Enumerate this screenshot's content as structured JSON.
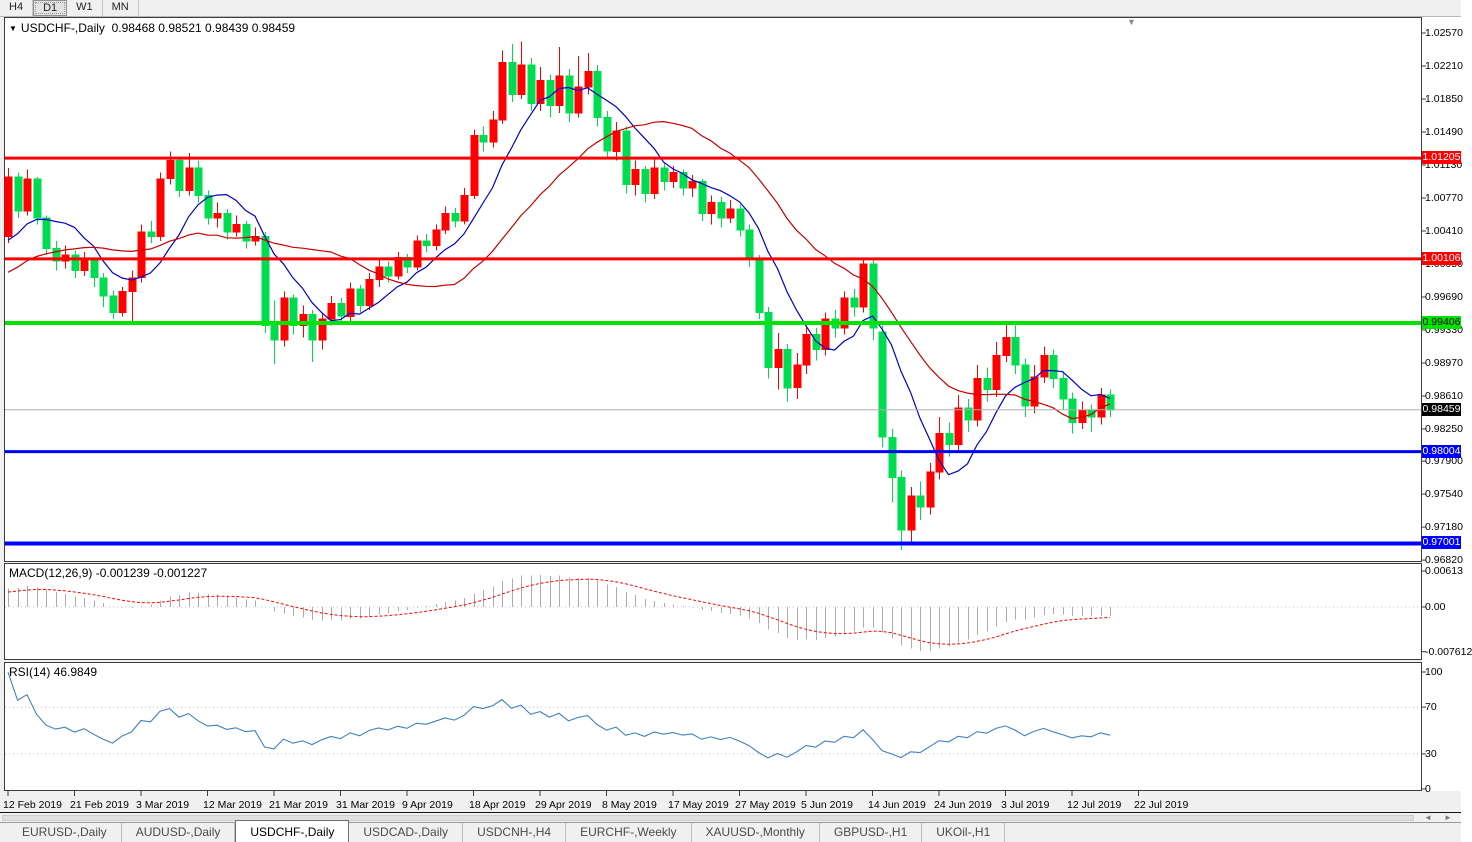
{
  "toolbar": {
    "timeframes": [
      "H4",
      "D1",
      "W1",
      "MN"
    ],
    "active": "D1"
  },
  "chart": {
    "title_symbol": "USDCHF-,Daily",
    "ohlc_text": "0.98468 0.98521 0.98439 0.98459",
    "open": "0.98468",
    "high": "0.98521",
    "low": "0.98439",
    "close": "0.98459"
  },
  "icons": {
    "dropdown": "▼",
    "end_marker": "▼",
    "scroll_left": "◄",
    "scroll_right": "►"
  },
  "price_axis": {
    "labels": [
      "1.02570",
      "1.02210",
      "1.01850",
      "1.01490",
      "1.01130",
      "1.00770",
      "1.00410",
      "1.00050",
      "0.99690",
      "0.99330",
      "0.98970",
      "0.98610",
      "0.98250",
      "0.97900",
      "0.97540",
      "0.97180",
      "0.96820"
    ]
  },
  "levels": [
    {
      "text": "1.01205",
      "value": 1.01205,
      "color": "#FF0000",
      "fg": "#FFFFFF",
      "thickness": 3,
      "role": "resistance"
    },
    {
      "text": "1.00106",
      "value": 1.00106,
      "color": "#FF0000",
      "fg": "#FFFFFF",
      "thickness": 3,
      "role": "resistance"
    },
    {
      "text": "0.99406",
      "value": 0.99406,
      "color": "#00E400",
      "fg": "#000000",
      "thickness": 4,
      "role": "pivot"
    },
    {
      "text": "0.98004",
      "value": 0.98004,
      "color": "#0000FF",
      "fg": "#FFFFFF",
      "thickness": 3,
      "role": "support"
    },
    {
      "text": "0.97001",
      "value": 0.97001,
      "color": "#0000FF",
      "fg": "#FFFFFF",
      "thickness": 4,
      "role": "support"
    }
  ],
  "current_price": {
    "text": "0.98459",
    "value": 0.98459,
    "color": "#000000",
    "fg": "#FFFFFF"
  },
  "macd": {
    "label": "MACD(12,26,9)",
    "values_text": "-0.001239 -0.001227",
    "axis": [
      {
        "text": "0.00613",
        "value": 0.00613
      },
      {
        "text": "0.00",
        "value": 0
      },
      {
        "text": "-0.007612",
        "value": -0.00761
      }
    ]
  },
  "rsi": {
    "label": "RSI(14)",
    "value_text": "46.9849",
    "axis": [
      {
        "text": "100",
        "value": 100
      },
      {
        "text": "70",
        "value": 70
      },
      {
        "text": "30",
        "value": 30
      },
      {
        "text": "0",
        "value": 0
      }
    ],
    "level_lines": [
      70,
      30
    ]
  },
  "tabs": [
    {
      "label": "EURUSD-,Daily",
      "active": false
    },
    {
      "label": "AUDUSD-,Daily",
      "active": false
    },
    {
      "label": "USDCHF-,Daily",
      "active": true
    },
    {
      "label": "USDCAD-,Daily",
      "active": false
    },
    {
      "label": "USDCNH-,H4",
      "active": false
    },
    {
      "label": "EURCHF-,Weekly",
      "active": false
    },
    {
      "label": "XAUUSD-,Monthly",
      "active": false
    },
    {
      "label": "GBPUSD-,H1",
      "active": false
    },
    {
      "label": "UKOil-,H1",
      "active": false
    }
  ],
  "chart_data": {
    "type": "candlestick",
    "symbol": "USDCHF",
    "timeframe": "Daily",
    "title": "USDCHF-,Daily",
    "up_color": "#FF0000",
    "down_color": "#00DC50",
    "x_labels": [
      "12 Feb 2019",
      "21 Feb 2019",
      "3 Mar 2019",
      "12 Mar 2019",
      "21 Mar 2019",
      "31 Mar 2019",
      "9 Apr 2019",
      "18 Apr 2019",
      "29 Apr 2019",
      "8 May 2019",
      "17 May 2019",
      "27 May 2019",
      "5 Jun 2019",
      "14 Jun 2019",
      "24 Jun 2019",
      "3 Jul 2019",
      "12 Jul 2019",
      "22 Jul 2019"
    ],
    "candles_per_label": 7,
    "y_range": [
      0.9682,
      1.0257
    ],
    "horizontal_lines": [
      1.01205,
      1.00106,
      0.99406,
      0.98004,
      0.97001
    ],
    "last_close": 0.98459,
    "ohlc_current": {
      "open": 0.98468,
      "high": 0.98521,
      "low": 0.98439,
      "close": 0.98459
    },
    "overlays": [
      {
        "name": "ma-fast",
        "period": 8,
        "color": "#0000C8"
      },
      {
        "name": "ma-slow",
        "period": 21,
        "color": "#C80000"
      }
    ],
    "indicators": [
      {
        "name": "MACD",
        "params": [
          12,
          26,
          9
        ],
        "current": [
          -0.001239,
          -0.001227
        ],
        "axis_range": [
          -0.00761,
          0.00613
        ],
        "histogram_color": "#ABABAB",
        "signal_color": "#FF0000"
      },
      {
        "name": "RSI",
        "params": [
          14
        ],
        "current": 46.9849,
        "axis_range": [
          0,
          100
        ],
        "levels": [
          30,
          70
        ],
        "line_color": "#4080C0"
      }
    ],
    "candles_ohlc": [
      [
        1.0035,
        1.011,
        1.0028,
        1.01
      ],
      [
        1.01,
        1.0105,
        1.0055,
        1.0063
      ],
      [
        1.0063,
        1.0108,
        1.0058,
        1.0098
      ],
      [
        1.0098,
        1.01,
        1.0048,
        1.0055
      ],
      [
        1.0055,
        1.0058,
        1.0015,
        1.0022
      ],
      [
        1.0022,
        1.003,
        0.9998,
        1.0008
      ],
      [
        1.0008,
        1.0025,
        1.0,
        1.0015
      ],
      [
        1.0015,
        1.002,
        0.999,
        0.9998
      ],
      [
        0.9998,
        1.0018,
        0.9992,
        1.001
      ],
      [
        1.001,
        1.0012,
        0.998,
        0.999
      ],
      [
        0.999,
        0.9995,
        0.9958,
        0.997
      ],
      [
        0.997,
        0.9976,
        0.9945,
        0.9952
      ],
      [
        0.9952,
        0.998,
        0.9948,
        0.9975
      ],
      [
        0.9975,
        0.9998,
        0.9941,
        0.999
      ],
      [
        0.999,
        1.0048,
        0.9985,
        1.004
      ],
      [
        1.004,
        1.0052,
        1.0028,
        1.0035
      ],
      [
        1.0035,
        1.0105,
        1.003,
        1.0098
      ],
      [
        1.0098,
        1.0128,
        1.0092,
        1.0118
      ],
      [
        1.0118,
        1.0122,
        1.0078,
        1.0085
      ],
      [
        1.0085,
        1.0126,
        1.008,
        1.011
      ],
      [
        1.011,
        1.0118,
        1.0072,
        1.008
      ],
      [
        1.008,
        1.0085,
        1.0048,
        1.0055
      ],
      [
        1.0055,
        1.0072,
        1.0045,
        1.006
      ],
      [
        1.006,
        1.0065,
        1.0032,
        1.004
      ],
      [
        1.004,
        1.0058,
        1.0035,
        1.0048
      ],
      [
        1.0048,
        1.0052,
        1.0022,
        1.003
      ],
      [
        1.003,
        1.0045,
        1.0025,
        1.0035
      ],
      [
        1.0035,
        1.004,
        0.993,
        0.9938
      ],
      [
        0.9938,
        0.9965,
        0.9896,
        0.9922
      ],
      [
        0.9922,
        0.9975,
        0.9915,
        0.9968
      ],
      [
        0.9968,
        0.9972,
        0.9928,
        0.9938
      ],
      [
        0.9938,
        0.996,
        0.9925,
        0.995
      ],
      [
        0.995,
        0.9955,
        0.9898,
        0.9922
      ],
      [
        0.9922,
        0.9952,
        0.9912,
        0.9945
      ],
      [
        0.9945,
        0.997,
        0.9938,
        0.9962
      ],
      [
        0.9962,
        0.9968,
        0.994,
        0.9948
      ],
      [
        0.9948,
        0.9985,
        0.9942,
        0.9978
      ],
      [
        0.9978,
        0.9982,
        0.9952,
        0.996
      ],
      [
        0.996,
        0.9995,
        0.9955,
        0.9988
      ],
      [
        0.9988,
        1.001,
        0.998,
        1.0002
      ],
      [
        1.0002,
        1.0008,
        0.9985,
        0.9992
      ],
      [
        0.9992,
        1.0018,
        0.9988,
        1.0012
      ],
      [
        1.0012,
        1.0016,
        0.9995,
        1.0002
      ],
      [
        1.0002,
        1.0036,
        0.9998,
        1.003
      ],
      [
        1.003,
        1.0038,
        1.0018,
        1.0025
      ],
      [
        1.0025,
        1.0048,
        1.002,
        1.0042
      ],
      [
        1.0042,
        1.0068,
        1.0038,
        1.006
      ],
      [
        1.006,
        1.0066,
        1.0045,
        1.0052
      ],
      [
        1.0052,
        1.0088,
        1.0048,
        1.008
      ],
      [
        1.008,
        1.0152,
        1.0076,
        1.0145
      ],
      [
        1.0145,
        1.0155,
        1.0128,
        1.0138
      ],
      [
        1.0138,
        1.0172,
        1.0132,
        1.0162
      ],
      [
        1.0162,
        1.0238,
        1.0158,
        1.0225
      ],
      [
        1.0225,
        1.0245,
        1.0182,
        1.019
      ],
      [
        1.019,
        1.0248,
        1.0185,
        1.0222
      ],
      [
        1.0222,
        1.023,
        1.0172,
        1.018
      ],
      [
        1.018,
        1.022,
        1.0172,
        1.0205
      ],
      [
        1.0205,
        1.0212,
        1.0165,
        1.0178
      ],
      [
        1.0178,
        1.0242,
        1.017,
        1.021
      ],
      [
        1.021,
        1.0218,
        1.016,
        1.017
      ],
      [
        1.017,
        1.0232,
        1.0165,
        1.0198
      ],
      [
        1.0198,
        1.0235,
        1.019,
        1.0215
      ],
      [
        1.0215,
        1.0222,
        1.0155,
        1.0165
      ],
      [
        1.0165,
        1.0172,
        1.012,
        1.0128
      ],
      [
        1.0128,
        1.016,
        1.0118,
        1.015
      ],
      [
        1.015,
        1.0155,
        1.0082,
        1.0092
      ],
      [
        1.0092,
        1.0118,
        1.008,
        1.0108
      ],
      [
        1.0108,
        1.0112,
        1.0072,
        1.0082
      ],
      [
        1.0082,
        1.012,
        1.0076,
        1.011
      ],
      [
        1.011,
        1.0115,
        1.0085,
        1.0095
      ],
      [
        1.0095,
        1.0112,
        1.0088,
        1.0105
      ],
      [
        1.0105,
        1.0108,
        1.008,
        1.0088
      ],
      [
        1.0088,
        1.0102,
        1.0078,
        1.0095
      ],
      [
        1.0095,
        1.0098,
        1.0052,
        1.006
      ],
      [
        1.006,
        1.008,
        1.0048,
        1.0072
      ],
      [
        1.0072,
        1.0078,
        1.0045,
        1.0055
      ],
      [
        1.0055,
        1.0075,
        1.005,
        1.0065
      ],
      [
        1.0065,
        1.007,
        1.0035,
        1.0042
      ],
      [
        1.0042,
        1.0048,
        1.0002,
        1.001
      ],
      [
        1.001,
        1.0015,
        0.9945,
        0.9952
      ],
      [
        0.9952,
        0.9958,
        0.988,
        0.9892
      ],
      [
        0.9892,
        0.993,
        0.9868,
        0.9912
      ],
      [
        0.9912,
        0.9918,
        0.9855,
        0.987
      ],
      [
        0.987,
        0.9908,
        0.9858,
        0.9895
      ],
      [
        0.9895,
        0.9938,
        0.9885,
        0.9928
      ],
      [
        0.9928,
        0.9935,
        0.99,
        0.9912
      ],
      [
        0.9912,
        0.9952,
        0.9905,
        0.9945
      ],
      [
        0.9945,
        0.9955,
        0.9925,
        0.9935
      ],
      [
        0.9935,
        0.9975,
        0.9928,
        0.9968
      ],
      [
        0.9968,
        0.9978,
        0.9948,
        0.9958
      ],
      [
        0.9958,
        1.0012,
        0.9952,
        1.0005
      ],
      [
        1.0005,
        1.0011,
        0.9922,
        0.9935
      ],
      [
        0.9931,
        0.9938,
        0.9805,
        0.9816
      ],
      [
        0.9816,
        0.9825,
        0.9745,
        0.9772
      ],
      [
        0.9772,
        0.978,
        0.9693,
        0.9715
      ],
      [
        0.9715,
        0.9762,
        0.97,
        0.9752
      ],
      [
        0.9752,
        0.9768,
        0.9726,
        0.974
      ],
      [
        0.974,
        0.9788,
        0.9732,
        0.9778
      ],
      [
        0.9778,
        0.9838,
        0.977,
        0.982
      ],
      [
        0.982,
        0.9832,
        0.9795,
        0.9808
      ],
      [
        0.9808,
        0.9862,
        0.98,
        0.9848
      ],
      [
        0.9848,
        0.9858,
        0.9822,
        0.9835
      ],
      [
        0.9835,
        0.9895,
        0.9828,
        0.988
      ],
      [
        0.988,
        0.9892,
        0.9855,
        0.9868
      ],
      [
        0.9868,
        0.992,
        0.986,
        0.9905
      ],
      [
        0.9905,
        0.994,
        0.9898,
        0.9925
      ],
      [
        0.9925,
        0.9938,
        0.9885,
        0.9895
      ],
      [
        0.9895,
        0.9902,
        0.9838,
        0.985
      ],
      [
        0.985,
        0.9895,
        0.9842,
        0.9882
      ],
      [
        0.9882,
        0.9915,
        0.9875,
        0.9905
      ],
      [
        0.9905,
        0.9912,
        0.987,
        0.988
      ],
      [
        0.988,
        0.9888,
        0.9845,
        0.9858
      ],
      [
        0.9858,
        0.9865,
        0.982,
        0.9832
      ],
      [
        0.9832,
        0.9855,
        0.9825,
        0.9845
      ],
      [
        0.9845,
        0.9852,
        0.9822,
        0.9838
      ],
      [
        0.9838,
        0.987,
        0.983,
        0.9862
      ],
      [
        0.9862,
        0.9868,
        0.9838,
        0.98459
      ]
    ]
  }
}
